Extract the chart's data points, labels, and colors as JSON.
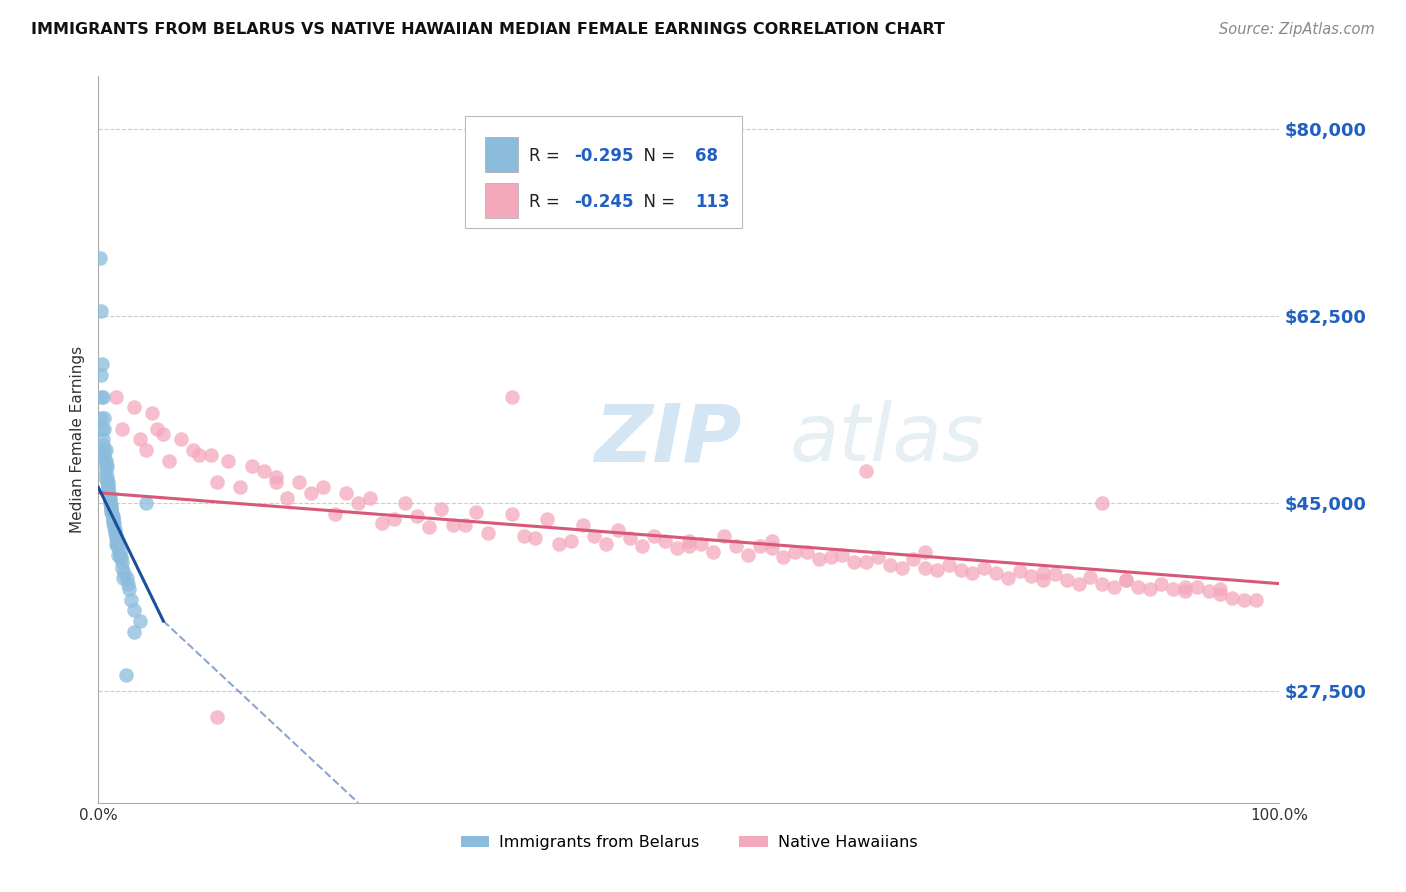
{
  "title": "IMMIGRANTS FROM BELARUS VS NATIVE HAWAIIAN MEDIAN FEMALE EARNINGS CORRELATION CHART",
  "source": "Source: ZipAtlas.com",
  "ylabel": "Median Female Earnings",
  "yticks": [
    27500,
    45000,
    62500,
    80000
  ],
  "ytick_labels": [
    "$27,500",
    "$45,000",
    "$62,500",
    "$80,000"
  ],
  "xlim": [
    0.0,
    100.0
  ],
  "ylim": [
    17000,
    85000
  ],
  "legend1_label": "Immigrants from Belarus",
  "legend2_label": "Native Hawaiians",
  "r1": -0.295,
  "n1": 68,
  "r2": -0.245,
  "n2": 113,
  "color_blue": "#8BBCDC",
  "color_pink": "#F4A8BC",
  "color_blue_line": "#1A4F9C",
  "color_pink_line": "#D85878",
  "color_blue_label": "#2060C0",
  "watermark_zip": "ZIP",
  "watermark_atlas": "atlas",
  "blue_scatter_x": [
    0.15,
    0.2,
    0.25,
    0.3,
    0.35,
    0.4,
    0.45,
    0.5,
    0.55,
    0.6,
    0.65,
    0.7,
    0.75,
    0.8,
    0.85,
    0.9,
    0.95,
    1.0,
    1.05,
    1.1,
    1.15,
    1.2,
    1.25,
    1.3,
    1.35,
    1.4,
    1.5,
    1.6,
    1.7,
    1.8,
    1.9,
    2.0,
    2.2,
    2.4,
    2.6,
    2.8,
    3.0,
    3.5,
    4.0,
    0.2,
    0.3,
    0.4,
    0.5,
    0.6,
    0.7,
    0.8,
    0.9,
    1.0,
    1.1,
    1.2,
    1.4,
    1.6,
    1.8,
    2.0,
    2.5,
    3.0,
    0.25,
    0.45,
    0.65,
    0.85,
    1.05,
    1.25,
    1.45,
    1.7,
    2.1,
    0.55,
    1.5,
    2.3
  ],
  "blue_scatter_y": [
    68000,
    55000,
    53000,
    52000,
    51000,
    50500,
    50000,
    49500,
    49000,
    48500,
    48000,
    47500,
    47000,
    46500,
    46000,
    45800,
    45500,
    45200,
    44800,
    44500,
    44000,
    43800,
    43500,
    43200,
    42800,
    42500,
    42000,
    41500,
    41000,
    40500,
    40000,
    39500,
    38500,
    38000,
    37000,
    36000,
    35000,
    34000,
    45000,
    63000,
    58000,
    55000,
    52000,
    50000,
    48500,
    47000,
    46000,
    45000,
    44200,
    43500,
    42200,
    41000,
    40000,
    39000,
    37500,
    33000,
    57000,
    53000,
    49000,
    46500,
    44600,
    43200,
    41800,
    40200,
    38000,
    47500,
    41200,
    29000
  ],
  "pink_scatter_x": [
    1.5,
    3.0,
    5.0,
    4.5,
    7.0,
    8.0,
    9.5,
    11.0,
    13.0,
    15.0,
    17.0,
    19.0,
    21.0,
    23.0,
    26.0,
    29.0,
    32.0,
    35.0,
    38.0,
    41.0,
    44.0,
    47.0,
    50.0,
    53.0,
    56.0,
    59.0,
    62.0,
    65.0,
    68.0,
    71.0,
    74.0,
    77.0,
    80.0,
    83.0,
    86.0,
    89.0,
    92.0,
    95.0,
    97.0,
    2.0,
    4.0,
    6.0,
    10.0,
    12.0,
    16.0,
    20.0,
    24.0,
    28.0,
    33.0,
    37.0,
    40.0,
    43.0,
    46.0,
    49.0,
    52.0,
    55.0,
    58.0,
    61.0,
    64.0,
    67.0,
    70.0,
    73.0,
    76.0,
    79.0,
    82.0,
    85.0,
    88.0,
    91.0,
    94.0,
    96.0,
    8.5,
    14.0,
    18.0,
    22.0,
    27.0,
    31.0,
    36.0,
    45.0,
    48.0,
    51.0,
    57.0,
    60.0,
    63.0,
    72.0,
    75.0,
    78.0,
    81.0,
    84.0,
    87.0,
    90.0,
    93.0,
    98.0,
    3.5,
    25.0,
    39.0,
    66.0,
    69.0,
    87.0,
    5.5,
    30.0,
    54.0,
    15.0,
    42.0,
    57.0,
    70.0,
    85.0,
    95.0,
    35.0,
    50.0,
    65.0,
    80.0,
    92.0,
    10.0
  ],
  "pink_scatter_y": [
    55000,
    54000,
    52000,
    53500,
    51000,
    50000,
    49500,
    49000,
    48500,
    47500,
    47000,
    46500,
    46000,
    45500,
    45000,
    44500,
    44200,
    44000,
    43500,
    43000,
    42500,
    42000,
    41500,
    42000,
    41000,
    40500,
    40000,
    39500,
    39000,
    38800,
    38500,
    38000,
    37800,
    37500,
    37200,
    37000,
    36800,
    36500,
    36000,
    52000,
    50000,
    49000,
    47000,
    46500,
    45500,
    44000,
    43200,
    42800,
    42200,
    41800,
    41500,
    41200,
    41000,
    40800,
    40500,
    40200,
    40000,
    39800,
    39500,
    39200,
    39000,
    38800,
    38500,
    38200,
    37800,
    37500,
    37200,
    37000,
    36800,
    36200,
    49500,
    48000,
    46000,
    45000,
    43800,
    43000,
    42000,
    41800,
    41500,
    41200,
    40800,
    40500,
    40200,
    39200,
    39000,
    38700,
    38400,
    38100,
    37800,
    37500,
    37200,
    36000,
    51000,
    43500,
    41200,
    40000,
    39800,
    37800,
    51500,
    43000,
    41000,
    47000,
    42000,
    41500,
    40500,
    45000,
    37000,
    55000,
    41000,
    48000,
    38500,
    37200,
    25000
  ],
  "blue_line_x0": 0.0,
  "blue_line_x1": 5.5,
  "blue_line_y0": 46500,
  "blue_line_y1": 34000,
  "blue_dashed_x0": 5.5,
  "blue_dashed_x1": 22.0,
  "blue_dashed_y0": 34000,
  "blue_dashed_y1": 17000,
  "pink_line_x0": 0.0,
  "pink_line_x1": 100.0,
  "pink_line_y0": 46000,
  "pink_line_y1": 37500
}
